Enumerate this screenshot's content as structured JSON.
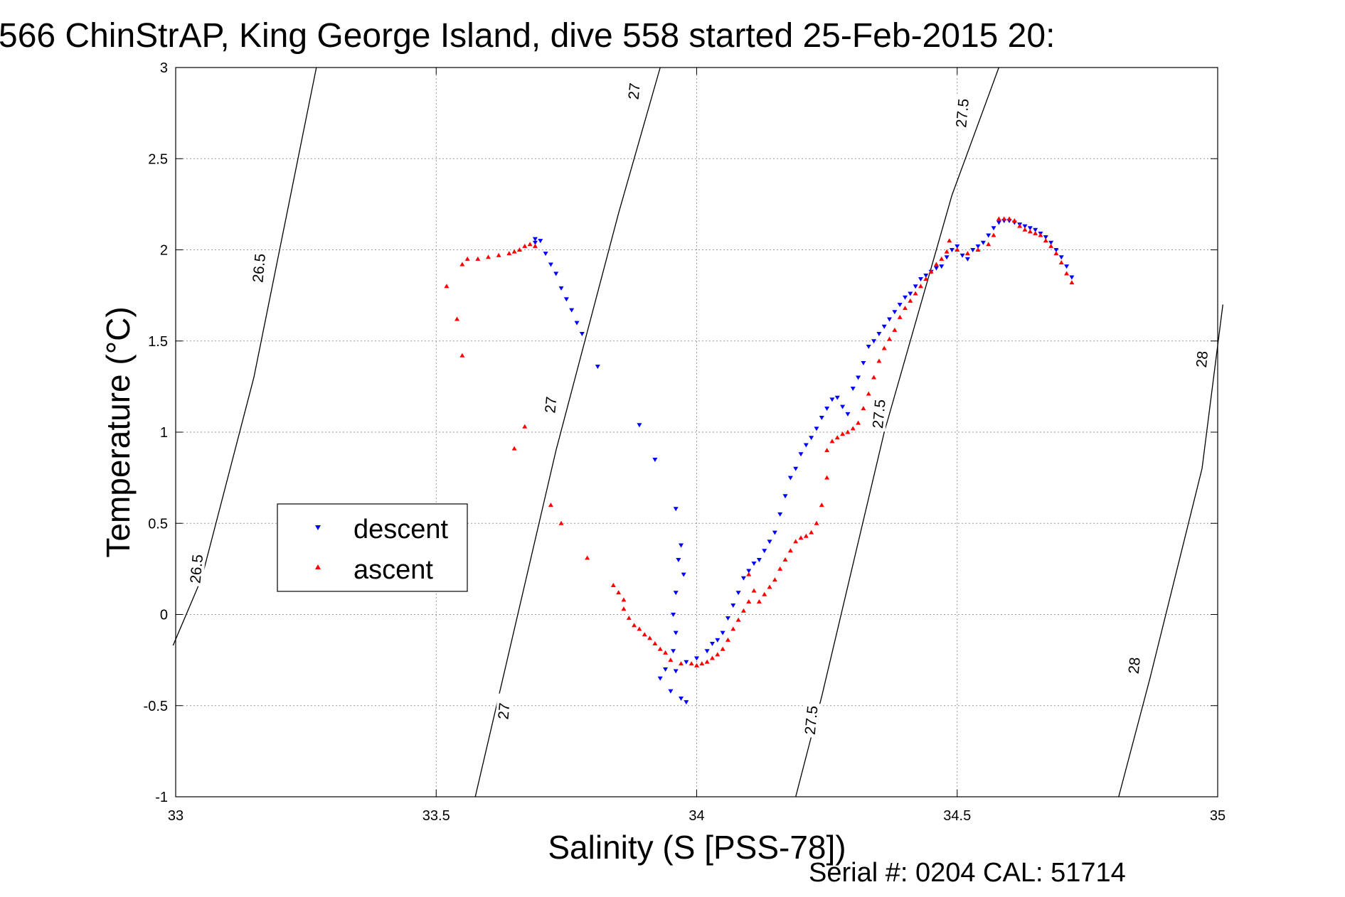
{
  "chart_data": {
    "type": "scatter",
    "title": "566 ChinStrAP, King George Island, dive 558 started 25-Feb-2015 20:",
    "xlabel": "Salinity (S [PSS-78])",
    "ylabel": "Temperature (°C)",
    "xlim": [
      33,
      35
    ],
    "ylim": [
      -1,
      3
    ],
    "xticks": [
      33,
      33.5,
      34,
      34.5,
      35
    ],
    "xtick_labels": [
      "33",
      "33.5",
      "34",
      "34.5",
      "35"
    ],
    "yticks": [
      -1,
      -0.5,
      0,
      0.5,
      1,
      1.5,
      2,
      2.5,
      3
    ],
    "ytick_labels": [
      "-1",
      "-0.5",
      "0",
      "0.5",
      "1",
      "1.5",
      "2",
      "2.5",
      "3"
    ],
    "grid": true,
    "legend_position": "middle-left",
    "density_contours": [
      {
        "value": "26.5",
        "points": [
          [
            32.995,
            -0.17
          ],
          [
            33.05,
            0.2
          ],
          [
            33.15,
            1.3
          ],
          [
            33.27,
            3.0
          ]
        ],
        "labels": [
          [
            33.04,
            0.25,
            0.96
          ],
          [
            33.16,
            1.9,
            0.96
          ]
        ]
      },
      {
        "value": "27",
        "points": [
          [
            33.575,
            -1.0
          ],
          [
            33.62,
            -0.45
          ],
          [
            33.73,
            0.9
          ],
          [
            33.85,
            2.2
          ],
          [
            33.93,
            3.0
          ]
        ],
        "labels": [
          [
            33.63,
            -0.53,
            0.95
          ],
          [
            33.72,
            1.15,
            0.95
          ],
          [
            33.88,
            2.87,
            0.95
          ]
        ]
      },
      {
        "value": "27.5",
        "points": [
          [
            34.19,
            -1.0
          ],
          [
            34.24,
            -0.45
          ],
          [
            34.36,
            1.0
          ],
          [
            34.49,
            2.3
          ],
          [
            34.58,
            3.0
          ]
        ],
        "labels": [
          [
            34.22,
            -0.58,
            0.95
          ],
          [
            34.35,
            1.1,
            0.95
          ],
          [
            34.51,
            2.75,
            0.95
          ]
        ]
      },
      {
        "value": "28",
        "points": [
          [
            34.81,
            -1.0
          ],
          [
            34.87,
            -0.35
          ],
          [
            34.97,
            0.8
          ],
          [
            35.01,
            1.7
          ]
        ],
        "labels": [
          [
            34.84,
            -0.28,
            0.95
          ],
          [
            34.97,
            1.4,
            0.95
          ]
        ]
      }
    ],
    "series": [
      {
        "name": "descent",
        "color": "#0000ff",
        "marker": "triangle-down",
        "points": [
          [
            33.69,
            2.06
          ],
          [
            33.7,
            2.05
          ],
          [
            33.69,
            2.04
          ],
          [
            33.71,
            1.98
          ],
          [
            33.72,
            1.92
          ],
          [
            33.73,
            1.87
          ],
          [
            33.74,
            1.79
          ],
          [
            33.75,
            1.73
          ],
          [
            33.76,
            1.67
          ],
          [
            33.77,
            1.6
          ],
          [
            33.78,
            1.54
          ],
          [
            33.81,
            1.36
          ],
          [
            33.89,
            1.04
          ],
          [
            33.92,
            0.85
          ],
          [
            33.96,
            0.58
          ],
          [
            33.97,
            0.38
          ],
          [
            33.965,
            0.3
          ],
          [
            33.975,
            0.22
          ],
          [
            33.96,
            0.12
          ],
          [
            33.955,
            0.0
          ],
          [
            33.96,
            -0.1
          ],
          [
            33.955,
            -0.2
          ],
          [
            33.94,
            -0.3
          ],
          [
            33.93,
            -0.35
          ],
          [
            33.95,
            -0.42
          ],
          [
            33.97,
            -0.46
          ],
          [
            33.98,
            -0.48
          ],
          [
            33.96,
            -0.31
          ],
          [
            33.98,
            -0.26
          ],
          [
            34.0,
            -0.24
          ],
          [
            34.02,
            -0.2
          ],
          [
            34.03,
            -0.16
          ],
          [
            34.04,
            -0.14
          ],
          [
            34.05,
            -0.1
          ],
          [
            34.06,
            -0.02
          ],
          [
            34.07,
            0.05
          ],
          [
            34.08,
            0.12
          ],
          [
            34.09,
            0.2
          ],
          [
            34.1,
            0.24
          ],
          [
            34.11,
            0.28
          ],
          [
            34.12,
            0.3
          ],
          [
            34.13,
            0.35
          ],
          [
            34.14,
            0.4
          ],
          [
            34.15,
            0.45
          ],
          [
            34.16,
            0.55
          ],
          [
            34.17,
            0.65
          ],
          [
            34.18,
            0.75
          ],
          [
            34.19,
            0.8
          ],
          [
            34.2,
            0.88
          ],
          [
            34.21,
            0.93
          ],
          [
            34.22,
            0.97
          ],
          [
            34.23,
            1.02
          ],
          [
            34.24,
            1.08
          ],
          [
            34.25,
            1.13
          ],
          [
            34.26,
            1.18
          ],
          [
            34.27,
            1.19
          ],
          [
            34.28,
            1.14
          ],
          [
            34.29,
            1.1
          ],
          [
            34.3,
            1.24
          ],
          [
            34.31,
            1.3
          ],
          [
            34.32,
            1.38
          ],
          [
            34.33,
            1.47
          ],
          [
            34.34,
            1.5
          ],
          [
            34.35,
            1.54
          ],
          [
            34.36,
            1.58
          ],
          [
            34.37,
            1.62
          ],
          [
            34.38,
            1.66
          ],
          [
            34.39,
            1.7
          ],
          [
            34.4,
            1.74
          ],
          [
            34.41,
            1.76
          ],
          [
            34.42,
            1.8
          ],
          [
            34.43,
            1.84
          ],
          [
            34.44,
            1.86
          ],
          [
            34.45,
            1.88
          ],
          [
            34.46,
            1.9
          ],
          [
            34.47,
            1.91
          ],
          [
            34.48,
            1.96
          ],
          [
            34.49,
            2.0
          ],
          [
            34.5,
            2.02
          ],
          [
            34.51,
            1.97
          ],
          [
            34.52,
            1.95
          ],
          [
            34.53,
            2.0
          ],
          [
            34.54,
            2.02
          ],
          [
            34.55,
            2.04
          ],
          [
            34.56,
            2.08
          ],
          [
            34.57,
            2.12
          ],
          [
            34.58,
            2.15
          ],
          [
            34.59,
            2.16
          ],
          [
            34.6,
            2.16
          ],
          [
            34.61,
            2.15
          ],
          [
            34.62,
            2.14
          ],
          [
            34.63,
            2.13
          ],
          [
            34.64,
            2.12
          ],
          [
            34.65,
            2.11
          ],
          [
            34.66,
            2.09
          ],
          [
            34.67,
            2.07
          ],
          [
            34.68,
            2.04
          ],
          [
            34.69,
            2.0
          ],
          [
            34.7,
            1.96
          ],
          [
            34.71,
            1.91
          ],
          [
            34.72,
            1.85
          ]
        ]
      },
      {
        "name": "ascent",
        "color": "#ff0000",
        "marker": "triangle-up",
        "points": [
          [
            33.69,
            2.02
          ],
          [
            33.68,
            2.03
          ],
          [
            33.67,
            2.02
          ],
          [
            33.66,
            2.0
          ],
          [
            33.65,
            1.99
          ],
          [
            33.64,
            1.98
          ],
          [
            33.62,
            1.97
          ],
          [
            33.6,
            1.96
          ],
          [
            33.58,
            1.95
          ],
          [
            33.56,
            1.95
          ],
          [
            33.55,
            1.92
          ],
          [
            33.52,
            1.8
          ],
          [
            33.54,
            1.62
          ],
          [
            33.55,
            1.42
          ],
          [
            33.67,
            1.03
          ],
          [
            33.65,
            0.91
          ],
          [
            33.72,
            0.6
          ],
          [
            33.74,
            0.5
          ],
          [
            33.79,
            0.31
          ],
          [
            33.84,
            0.16
          ],
          [
            33.85,
            0.12
          ],
          [
            33.86,
            0.08
          ],
          [
            33.86,
            0.03
          ],
          [
            33.87,
            -0.02
          ],
          [
            33.88,
            -0.06
          ],
          [
            33.89,
            -0.08
          ],
          [
            33.9,
            -0.11
          ],
          [
            33.91,
            -0.13
          ],
          [
            33.92,
            -0.16
          ],
          [
            33.93,
            -0.19
          ],
          [
            33.94,
            -0.21
          ],
          [
            33.95,
            -0.25
          ],
          [
            33.97,
            -0.27
          ],
          [
            33.99,
            -0.27
          ],
          [
            34.0,
            -0.28
          ],
          [
            34.01,
            -0.27
          ],
          [
            34.02,
            -0.26
          ],
          [
            34.03,
            -0.24
          ],
          [
            34.04,
            -0.22
          ],
          [
            34.05,
            -0.19
          ],
          [
            34.06,
            -0.14
          ],
          [
            34.07,
            -0.08
          ],
          [
            34.08,
            -0.03
          ],
          [
            34.09,
            0.02
          ],
          [
            34.1,
            0.07
          ],
          [
            34.1,
            0.22
          ],
          [
            34.11,
            0.13
          ],
          [
            34.12,
            0.07
          ],
          [
            34.13,
            0.11
          ],
          [
            34.14,
            0.15
          ],
          [
            34.15,
            0.19
          ],
          [
            34.16,
            0.25
          ],
          [
            34.17,
            0.3
          ],
          [
            34.18,
            0.35
          ],
          [
            34.19,
            0.4
          ],
          [
            34.2,
            0.42
          ],
          [
            34.21,
            0.43
          ],
          [
            34.22,
            0.45
          ],
          [
            34.23,
            0.5
          ],
          [
            34.24,
            0.6
          ],
          [
            34.25,
            0.75
          ],
          [
            34.25,
            0.9
          ],
          [
            34.26,
            0.95
          ],
          [
            34.27,
            0.97
          ],
          [
            34.28,
            0.99
          ],
          [
            34.29,
            1.0
          ],
          [
            34.3,
            1.02
          ],
          [
            34.31,
            1.05
          ],
          [
            34.32,
            1.13
          ],
          [
            34.33,
            1.21
          ],
          [
            34.34,
            1.3
          ],
          [
            34.35,
            1.39
          ],
          [
            34.36,
            1.46
          ],
          [
            34.37,
            1.51
          ],
          [
            34.38,
            1.56
          ],
          [
            34.39,
            1.63
          ],
          [
            34.4,
            1.68
          ],
          [
            34.41,
            1.72
          ],
          [
            34.42,
            1.76
          ],
          [
            34.43,
            1.8
          ],
          [
            34.44,
            1.84
          ],
          [
            34.45,
            1.88
          ],
          [
            34.46,
            1.92
          ],
          [
            34.47,
            1.95
          ],
          [
            34.48,
            1.99
          ],
          [
            34.485,
            2.05
          ],
          [
            34.5,
            2.0
          ],
          [
            34.52,
            1.98
          ],
          [
            34.54,
            2.0
          ],
          [
            34.56,
            2.03
          ],
          [
            34.57,
            2.08
          ],
          [
            34.58,
            2.17
          ],
          [
            34.59,
            2.17
          ],
          [
            34.6,
            2.17
          ],
          [
            34.61,
            2.16
          ],
          [
            34.62,
            2.13
          ],
          [
            34.63,
            2.11
          ],
          [
            34.64,
            2.1
          ],
          [
            34.65,
            2.09
          ],
          [
            34.66,
            2.08
          ],
          [
            34.67,
            2.05
          ],
          [
            34.68,
            2.02
          ],
          [
            34.69,
            1.98
          ],
          [
            34.7,
            1.93
          ],
          [
            34.71,
            1.87
          ],
          [
            34.72,
            1.82
          ]
        ]
      }
    ],
    "footer": "Serial #: 0204  CAL: 51714"
  }
}
